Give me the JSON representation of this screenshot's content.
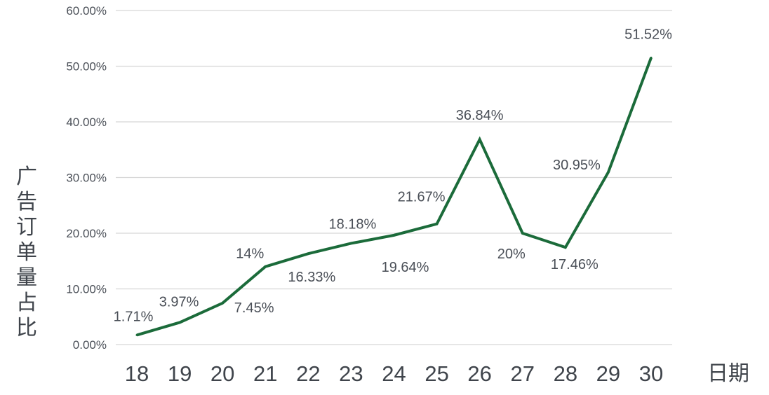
{
  "chart_data": {
    "type": "line",
    "title": "",
    "xlabel": "日期",
    "ylabel": "广告订单量占比",
    "categories": [
      "18",
      "19",
      "20",
      "21",
      "22",
      "23",
      "24",
      "25",
      "26",
      "27",
      "28",
      "29",
      "30"
    ],
    "y_ticks": [
      "0.00%",
      "10.00%",
      "20.00%",
      "30.00%",
      "40.00%",
      "50.00%",
      "60.00%"
    ],
    "ylim": [
      0,
      60
    ],
    "grid": true,
    "legend": "none",
    "color": "#1b6b3a",
    "series": [
      {
        "points": [
          {
            "x": "18",
            "y": 1.71,
            "label": "1.71%"
          },
          {
            "x": "19",
            "y": 3.97,
            "label": "3.97%"
          },
          {
            "x": "20",
            "y": 7.45,
            "label": "7.45%"
          },
          {
            "x": "21",
            "y": 14.0,
            "label": "14%"
          },
          {
            "x": "22",
            "y": 16.33,
            "label": "16.33%"
          },
          {
            "x": "23",
            "y": 18.18,
            "label": "18.18%"
          },
          {
            "x": "24",
            "y": 19.64,
            "label": "19.64%"
          },
          {
            "x": "25",
            "y": 21.67,
            "label": "21.67%"
          },
          {
            "x": "26",
            "y": 36.84,
            "label": "36.84%"
          },
          {
            "x": "27",
            "y": 20.0,
            "label": "20%"
          },
          {
            "x": "28",
            "y": 17.46,
            "label": "17.46%"
          },
          {
            "x": "29",
            "y": 30.95,
            "label": "30.95%"
          },
          {
            "x": "30",
            "y": 51.52,
            "label": "51.52%"
          }
        ]
      }
    ]
  }
}
